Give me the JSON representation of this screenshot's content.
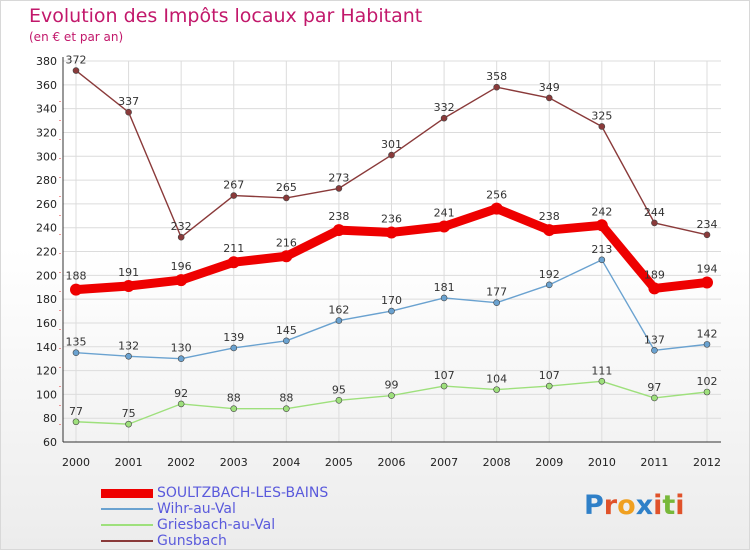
{
  "header": {
    "title": "Evolution des Impôts locaux par Habitant",
    "subtitle": "(en € et par an)"
  },
  "logo": {
    "letters": [
      "P",
      "r",
      "o",
      "x",
      "i",
      "t",
      "i"
    ],
    "colors": [
      "#2f80c8",
      "#e0522a",
      "#f0a020",
      "#2f80c8",
      "#e0522a",
      "#78b83a",
      "#e0522a"
    ]
  },
  "chart_data": {
    "type": "line",
    "title": "Evolution des Impôts locaux par Habitant",
    "subtitle": "(en € et par an)",
    "xlabel": "",
    "ylabel": "",
    "categories": [
      "2000",
      "2001",
      "2002",
      "2003",
      "2004",
      "2005",
      "2006",
      "2007",
      "2008",
      "2009",
      "2010",
      "2011",
      "2012"
    ],
    "ylim": [
      60,
      380
    ],
    "yticks": [
      60,
      80,
      100,
      120,
      140,
      160,
      180,
      200,
      220,
      240,
      260,
      280,
      300,
      320,
      340,
      360,
      380
    ],
    "grid": true,
    "legend_position": "bottom-left",
    "series": [
      {
        "name": "SOULTZBACH-LES-BAINS",
        "color": "#ee0000",
        "values": [
          188,
          191,
          196,
          211,
          216,
          238,
          236,
          241,
          256,
          238,
          242,
          189,
          194
        ]
      },
      {
        "name": "Wihr-au-Val",
        "color": "#6aa2d0",
        "values": [
          135,
          132,
          130,
          139,
          145,
          162,
          170,
          181,
          177,
          192,
          213,
          137,
          142
        ]
      },
      {
        "name": "Griesbach-au-Val",
        "color": "#9ee07c",
        "values": [
          77,
          75,
          92,
          88,
          88,
          95,
          99,
          107,
          104,
          107,
          111,
          97,
          102
        ]
      },
      {
        "name": "Gunsbach",
        "color": "#8a3a3a",
        "values": [
          372,
          337,
          232,
          267,
          265,
          273,
          301,
          332,
          358,
          349,
          325,
          244,
          234
        ]
      }
    ]
  }
}
